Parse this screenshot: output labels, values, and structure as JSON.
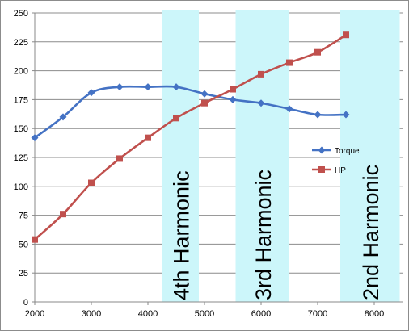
{
  "chart_data": {
    "type": "line",
    "title": "",
    "xlabel": "",
    "ylabel": "",
    "xlim": [
      2000,
      8500
    ],
    "ylim": [
      0,
      250
    ],
    "x_ticks": [
      2000,
      3000,
      4000,
      5000,
      6000,
      7000,
      8000
    ],
    "y_ticks": [
      0,
      25,
      50,
      75,
      100,
      125,
      150,
      175,
      200,
      225,
      250
    ],
    "grid": true,
    "legend_position": "right",
    "x": [
      2000,
      2500,
      3000,
      3500,
      4000,
      4500,
      5000,
      5500,
      6000,
      6500,
      7000,
      7500
    ],
    "series": [
      {
        "name": "Torque",
        "color": "#4472C4",
        "marker": "diamond",
        "values": [
          142,
          160,
          181,
          186,
          186,
          186,
          180,
          175,
          172,
          167,
          162,
          162
        ]
      },
      {
        "name": "HP",
        "color": "#C0504D",
        "marker": "square",
        "values": [
          54,
          76,
          103,
          124,
          142,
          159,
          172,
          184,
          197,
          207,
          216,
          231
        ]
      }
    ],
    "bands": [
      {
        "label": "4th Harmonic",
        "x_from": 4250,
        "x_to": 4900,
        "color": "#CCF6FA"
      },
      {
        "label": "3rd Harmonic",
        "x_from": 5550,
        "x_to": 6500,
        "color": "#CCF6FA"
      },
      {
        "label": "2nd Harmonic",
        "x_from": 7400,
        "x_to": 8450,
        "color": "#CCF6FA"
      }
    ]
  }
}
